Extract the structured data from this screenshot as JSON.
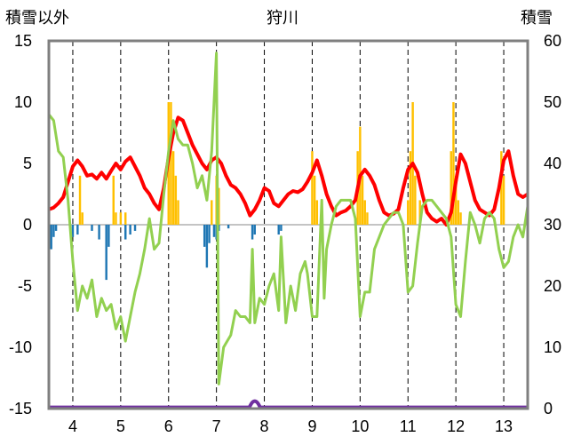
{
  "chart_data": {
    "type": "line",
    "title": "狩川",
    "left_axis_label": "積雪以外",
    "right_axis_label": "積雪",
    "left_ticks": [
      15,
      10,
      5,
      0,
      -5,
      -10,
      -15
    ],
    "right_ticks": [
      60,
      50,
      40,
      30,
      20,
      10,
      0
    ],
    "ylim_left": [
      -15,
      15
    ],
    "ylim_right": [
      0,
      60
    ],
    "x_tick_labels": [
      "4",
      "5",
      "6",
      "7",
      "8",
      "9",
      "10",
      "11",
      "12",
      "13"
    ],
    "x_tick_values": [
      4,
      5,
      6,
      7,
      8,
      9,
      10,
      11,
      12,
      13
    ],
    "xlim": [
      3.5,
      13.5
    ],
    "grid": "dashed vertical lines at each day",
    "legend": "none",
    "colors": {
      "snow_depth": "#ff0000",
      "temperature": "#92d050",
      "precipitation": "#ffc000",
      "negative_bars": "#1f77b4",
      "bottom_line": "#7030a0",
      "frame": "#7f7f7f"
    },
    "series": [
      {
        "key": "snow_depth",
        "axis": "right",
        "points": [
          [
            3.5,
            32.5
          ],
          [
            3.6,
            32.8
          ],
          [
            3.7,
            33.5
          ],
          [
            3.8,
            34.5
          ],
          [
            3.9,
            37
          ],
          [
            4.0,
            39.5
          ],
          [
            4.1,
            40.5
          ],
          [
            4.2,
            39.5
          ],
          [
            4.3,
            38
          ],
          [
            4.4,
            38.2
          ],
          [
            4.5,
            37.5
          ],
          [
            4.6,
            38.5
          ],
          [
            4.7,
            37.5
          ],
          [
            4.8,
            38.8
          ],
          [
            4.9,
            40
          ],
          [
            5.0,
            39
          ],
          [
            5.1,
            40.3
          ],
          [
            5.2,
            41
          ],
          [
            5.3,
            39.5
          ],
          [
            5.4,
            38
          ],
          [
            5.5,
            36
          ],
          [
            5.6,
            35
          ],
          [
            5.7,
            33.5
          ],
          [
            5.8,
            32.5
          ],
          [
            5.9,
            36
          ],
          [
            6.0,
            41
          ],
          [
            6.1,
            45
          ],
          [
            6.2,
            47.5
          ],
          [
            6.3,
            47
          ],
          [
            6.4,
            45
          ],
          [
            6.5,
            43
          ],
          [
            6.6,
            41.5
          ],
          [
            6.7,
            40
          ],
          [
            6.8,
            39
          ],
          [
            6.9,
            40.5
          ],
          [
            7.0,
            41
          ],
          [
            7.1,
            40
          ],
          [
            7.2,
            38
          ],
          [
            7.3,
            36.5
          ],
          [
            7.4,
            36
          ],
          [
            7.5,
            35
          ],
          [
            7.6,
            33.5
          ],
          [
            7.7,
            31.5
          ],
          [
            7.8,
            32.5
          ],
          [
            7.9,
            34
          ],
          [
            8.0,
            36
          ],
          [
            8.1,
            35.5
          ],
          [
            8.2,
            33.5
          ],
          [
            8.3,
            33
          ],
          [
            8.4,
            34
          ],
          [
            8.5,
            35
          ],
          [
            8.6,
            35.5
          ],
          [
            8.7,
            35.3
          ],
          [
            8.8,
            35.8
          ],
          [
            8.9,
            37
          ],
          [
            9.0,
            38.5
          ],
          [
            9.1,
            40.5
          ],
          [
            9.2,
            38
          ],
          [
            9.3,
            35
          ],
          [
            9.4,
            33
          ],
          [
            9.5,
            31.5
          ],
          [
            9.6,
            32
          ],
          [
            9.7,
            32.3
          ],
          [
            9.8,
            33
          ],
          [
            9.9,
            34
          ],
          [
            10.0,
            38
          ],
          [
            10.1,
            39
          ],
          [
            10.2,
            38
          ],
          [
            10.3,
            36.5
          ],
          [
            10.4,
            34
          ],
          [
            10.5,
            32
          ],
          [
            10.6,
            31.5
          ],
          [
            10.7,
            31.8
          ],
          [
            10.8,
            32.5
          ],
          [
            10.9,
            36
          ],
          [
            11.0,
            39
          ],
          [
            11.1,
            40
          ],
          [
            11.2,
            38.5
          ],
          [
            11.3,
            35
          ],
          [
            11.4,
            32
          ],
          [
            11.5,
            31
          ],
          [
            11.6,
            30.5
          ],
          [
            11.7,
            31
          ],
          [
            11.8,
            30
          ],
          [
            11.9,
            32
          ],
          [
            12.0,
            37
          ],
          [
            12.1,
            41.5
          ],
          [
            12.2,
            40
          ],
          [
            12.3,
            37
          ],
          [
            12.4,
            34
          ],
          [
            12.5,
            32.5
          ],
          [
            12.6,
            32
          ],
          [
            12.7,
            31.5
          ],
          [
            12.8,
            32.5
          ],
          [
            12.9,
            36
          ],
          [
            13.0,
            40.5
          ],
          [
            13.1,
            42
          ],
          [
            13.2,
            38
          ],
          [
            13.3,
            35
          ],
          [
            13.4,
            34.5
          ],
          [
            13.5,
            35
          ]
        ]
      },
      {
        "key": "temperature",
        "axis": "left",
        "points": [
          [
            3.5,
            9
          ],
          [
            3.6,
            8.5
          ],
          [
            3.7,
            6
          ],
          [
            3.8,
            5.5
          ],
          [
            3.9,
            2
          ],
          [
            4.0,
            -3
          ],
          [
            4.1,
            -7
          ],
          [
            4.2,
            -5
          ],
          [
            4.3,
            -6
          ],
          [
            4.4,
            -4.5
          ],
          [
            4.5,
            -7.5
          ],
          [
            4.6,
            -6
          ],
          [
            4.7,
            -7
          ],
          [
            4.8,
            -6.5
          ],
          [
            4.9,
            -8.5
          ],
          [
            5.0,
            -7.5
          ],
          [
            5.1,
            -9.5
          ],
          [
            5.2,
            -7.5
          ],
          [
            5.3,
            -5.5
          ],
          [
            5.4,
            -4
          ],
          [
            5.5,
            -2
          ],
          [
            5.6,
            0.5
          ],
          [
            5.7,
            -2
          ],
          [
            5.8,
            -1.5
          ],
          [
            5.9,
            2.5
          ],
          [
            6.0,
            6
          ],
          [
            6.1,
            8.5
          ],
          [
            6.2,
            7
          ],
          [
            6.3,
            6.5
          ],
          [
            6.4,
            6.5
          ],
          [
            6.5,
            5
          ],
          [
            6.6,
            3
          ],
          [
            6.7,
            4
          ],
          [
            6.8,
            2
          ],
          [
            6.9,
            6
          ],
          [
            7.0,
            14
          ],
          [
            7.05,
            -13
          ],
          [
            7.15,
            -10
          ],
          [
            7.3,
            -9
          ],
          [
            7.4,
            -7
          ],
          [
            7.5,
            -7.5
          ],
          [
            7.6,
            -7.5
          ],
          [
            7.7,
            -8
          ],
          [
            7.75,
            -2
          ],
          [
            7.8,
            -8
          ],
          [
            7.9,
            -6
          ],
          [
            8.0,
            -6.5
          ],
          [
            8.1,
            -5
          ],
          [
            8.2,
            -4
          ],
          [
            8.3,
            -7
          ],
          [
            8.35,
            -1
          ],
          [
            8.45,
            -8
          ],
          [
            8.55,
            -5
          ],
          [
            8.65,
            -7
          ],
          [
            8.75,
            -4
          ],
          [
            8.85,
            -3
          ],
          [
            8.9,
            -4
          ],
          [
            9.0,
            -7.5
          ],
          [
            9.1,
            -7.5
          ],
          [
            9.2,
            2
          ],
          [
            9.25,
            -6
          ],
          [
            9.3,
            -2
          ],
          [
            9.4,
            0
          ],
          [
            9.5,
            1.5
          ],
          [
            9.6,
            2
          ],
          [
            9.7,
            2
          ],
          [
            9.8,
            2
          ],
          [
            9.9,
            0.5
          ],
          [
            10.0,
            -7.5
          ],
          [
            10.1,
            -5.5
          ],
          [
            10.2,
            -5.5
          ],
          [
            10.3,
            -2
          ],
          [
            10.4,
            -1
          ],
          [
            10.5,
            0
          ],
          [
            10.6,
            0.5
          ],
          [
            10.7,
            1
          ],
          [
            10.8,
            1
          ],
          [
            10.9,
            0
          ],
          [
            11.0,
            -5.5
          ],
          [
            11.1,
            -5
          ],
          [
            11.2,
            -1.5
          ],
          [
            11.3,
            1.5
          ],
          [
            11.4,
            2
          ],
          [
            11.5,
            2
          ],
          [
            11.6,
            1.5
          ],
          [
            11.7,
            1
          ],
          [
            11.8,
            0.5
          ],
          [
            11.9,
            -1
          ],
          [
            12.0,
            -6.5
          ],
          [
            12.1,
            -7.5
          ],
          [
            12.2,
            -3
          ],
          [
            12.3,
            1
          ],
          [
            12.4,
            0
          ],
          [
            12.5,
            -1.5
          ],
          [
            12.6,
            0.5
          ],
          [
            12.7,
            1
          ],
          [
            12.8,
            0.5
          ],
          [
            12.9,
            -2
          ],
          [
            13.0,
            -3.5
          ],
          [
            13.1,
            -3
          ],
          [
            13.2,
            -1
          ],
          [
            13.3,
            0
          ],
          [
            13.4,
            -1
          ],
          [
            13.5,
            1.5
          ]
        ]
      }
    ],
    "precipitation_bars": [
      [
        4.15,
        4
      ],
      [
        4.2,
        1
      ],
      [
        4.85,
        4
      ],
      [
        4.9,
        1
      ],
      [
        5.0,
        1
      ],
      [
        5.1,
        1
      ],
      [
        6.0,
        10
      ],
      [
        6.05,
        10
      ],
      [
        6.1,
        6
      ],
      [
        6.15,
        4
      ],
      [
        6.2,
        2
      ],
      [
        6.9,
        2
      ],
      [
        7.0,
        4
      ],
      [
        7.05,
        3
      ],
      [
        9.0,
        6
      ],
      [
        9.05,
        4
      ],
      [
        9.1,
        2
      ],
      [
        9.95,
        6
      ],
      [
        10.0,
        8
      ],
      [
        10.05,
        4
      ],
      [
        10.1,
        2
      ],
      [
        10.15,
        1
      ],
      [
        11.0,
        2
      ],
      [
        11.05,
        6
      ],
      [
        11.1,
        10
      ],
      [
        11.15,
        4
      ],
      [
        11.25,
        2
      ],
      [
        11.9,
        6
      ],
      [
        11.95,
        10
      ],
      [
        12.0,
        4
      ],
      [
        12.05,
        2
      ],
      [
        12.1,
        1
      ],
      [
        12.95,
        6
      ],
      [
        13.0,
        4
      ]
    ],
    "negative_bars": [
      [
        3.55,
        -2
      ],
      [
        3.6,
        -1
      ],
      [
        3.65,
        -0.5
      ],
      [
        4.0,
        -1
      ],
      [
        4.1,
        -0.8
      ],
      [
        4.4,
        -0.5
      ],
      [
        4.55,
        -1.2
      ],
      [
        4.7,
        -4.5
      ],
      [
        4.75,
        -1.8
      ],
      [
        5.1,
        -1.2
      ],
      [
        5.2,
        -0.8
      ],
      [
        5.3,
        -0.5
      ],
      [
        6.75,
        -1.8
      ],
      [
        6.8,
        -3.5
      ],
      [
        6.85,
        -1.5
      ],
      [
        6.95,
        -1
      ],
      [
        7.0,
        -1.2
      ],
      [
        7.05,
        -0.5
      ],
      [
        7.25,
        -0.3
      ],
      [
        7.75,
        -1.2
      ],
      [
        7.8,
        -0.8
      ],
      [
        8.3,
        -0.8
      ],
      [
        8.35,
        -0.5
      ]
    ],
    "bottom_line": {
      "value": -14.9,
      "bump_center": 7.8
    }
  }
}
